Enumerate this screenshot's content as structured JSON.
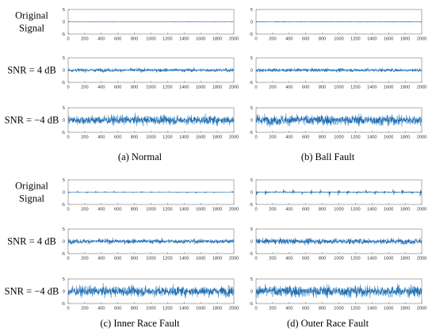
{
  "colors": {
    "signal": "#1f6fb4",
    "frame": "#8c8c8c",
    "text": "#000000"
  },
  "row_labels": [
    [
      "Original",
      "Signal"
    ],
    [
      "SNR = 4 dB"
    ],
    [
      "SNR = −4 dB"
    ]
  ],
  "chart_data": [
    {
      "type": "line",
      "caption": "(a) Normal",
      "condition": "Normal",
      "x_range": [
        0,
        2000
      ],
      "x_ticks": [
        0,
        200,
        400,
        600,
        800,
        1000,
        1200,
        1400,
        1600,
        1800,
        2000
      ],
      "y_ticks": [
        -5,
        0,
        5
      ],
      "ylim": [
        -5,
        5
      ],
      "samples": 2000,
      "rows": [
        {
          "snr_label": "Original Signal",
          "amplitude_range": [
            -0.15,
            0.15
          ],
          "impulses": false
        },
        {
          "snr_label": "SNR = 4 dB",
          "amplitude_range": [
            -1.5,
            1.5
          ],
          "impulses": false
        },
        {
          "snr_label": "SNR = −4 dB",
          "amplitude_range": [
            -4,
            4
          ],
          "impulses": false
        }
      ]
    },
    {
      "type": "line",
      "caption": "(b) Ball Fault",
      "condition": "Ball Fault",
      "x_range": [
        0,
        2000
      ],
      "x_ticks": [
        0,
        200,
        400,
        600,
        800,
        1000,
        1200,
        1400,
        1600,
        1800,
        2000
      ],
      "y_ticks": [
        -5,
        0,
        5
      ],
      "ylim": [
        -5,
        5
      ],
      "samples": 2000,
      "rows": [
        {
          "snr_label": "Original Signal",
          "amplitude_range": [
            -0.3,
            0.3
          ],
          "impulses": false
        },
        {
          "snr_label": "SNR = 4 dB",
          "amplitude_range": [
            -1.5,
            1.5
          ],
          "impulses": false
        },
        {
          "snr_label": "SNR = −4 dB",
          "amplitude_range": [
            -4.5,
            4.5
          ],
          "impulses": false
        }
      ]
    },
    {
      "type": "line",
      "caption": "(c) Inner Race Fault",
      "condition": "Inner Race Fault",
      "x_range": [
        0,
        2000
      ],
      "x_ticks": [
        0,
        200,
        400,
        600,
        800,
        1000,
        1200,
        1400,
        1600,
        1800,
        2000
      ],
      "y_ticks": [
        -5,
        0,
        5
      ],
      "ylim": [
        -5,
        5
      ],
      "samples": 2000,
      "rows": [
        {
          "snr_label": "Original Signal",
          "amplitude_range": [
            -0.8,
            0.8
          ],
          "impulses": true,
          "impulse_period": 110
        },
        {
          "snr_label": "SNR = 4 dB",
          "amplitude_range": [
            -2,
            2
          ],
          "impulses": false
        },
        {
          "snr_label": "SNR = −4 dB",
          "amplitude_range": [
            -4.5,
            4.5
          ],
          "impulses": false
        }
      ]
    },
    {
      "type": "line",
      "caption": "(d) Outer Race Fault",
      "condition": "Outer Race Fault",
      "x_range": [
        0,
        2000
      ],
      "x_ticks": [
        0,
        200,
        400,
        600,
        800,
        1000,
        1200,
        1400,
        1600,
        1800,
        2000
      ],
      "y_ticks": [
        -5,
        0,
        5
      ],
      "ylim": [
        -5,
        5
      ],
      "samples": 2000,
      "rows": [
        {
          "snr_label": "Original Signal",
          "amplitude_range": [
            -3,
            3
          ],
          "impulses": true,
          "impulse_period": 110
        },
        {
          "snr_label": "SNR = 4 dB",
          "amplitude_range": [
            -2.5,
            2.5
          ],
          "impulses": false
        },
        {
          "snr_label": "SNR = −4 dB",
          "amplitude_range": [
            -5,
            5
          ],
          "impulses": false
        }
      ]
    }
  ]
}
